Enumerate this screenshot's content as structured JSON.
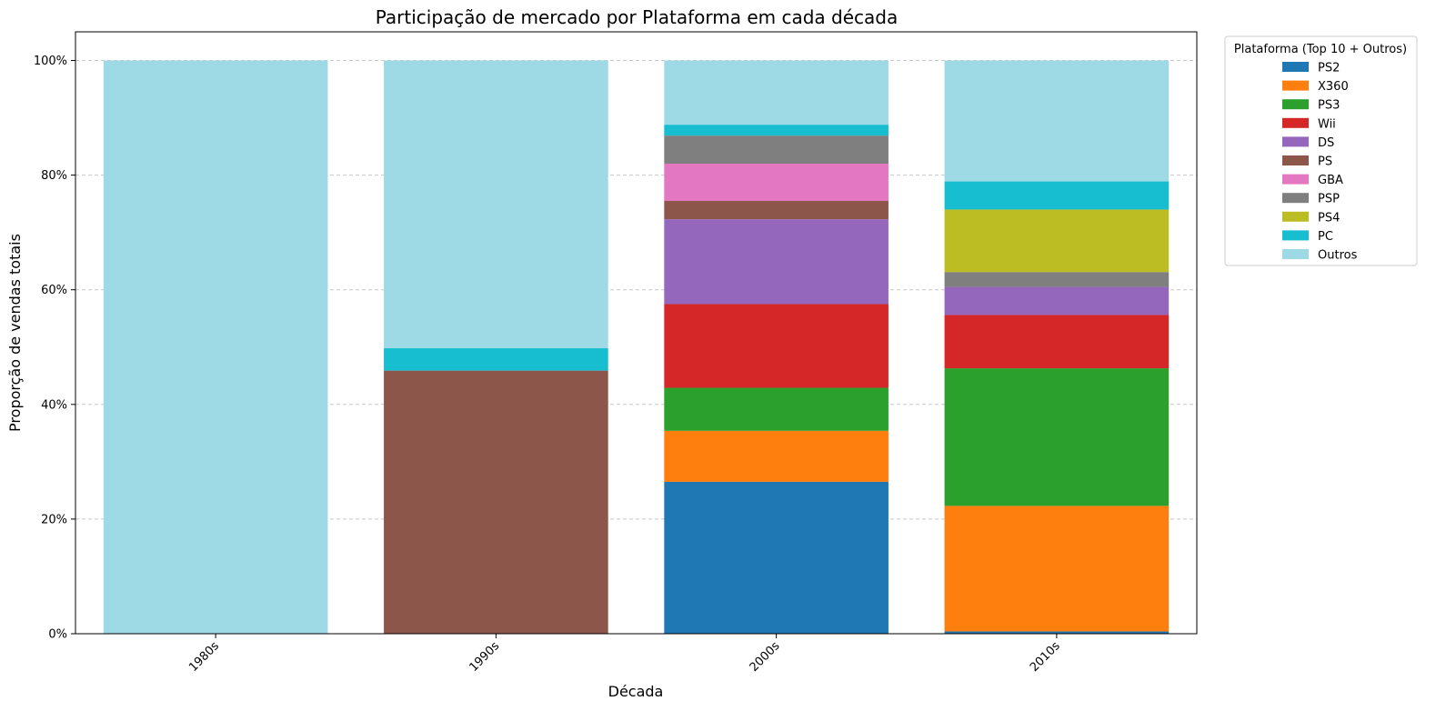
{
  "chart_data": {
    "type": "bar",
    "stacked": true,
    "title": "Participação de mercado por Plataforma em cada década",
    "xlabel": "Década",
    "ylabel": "Proporção de vendas totais",
    "categories": [
      "1980s",
      "1990s",
      "2000s",
      "2010s"
    ],
    "ylim": [
      0,
      105
    ],
    "y_ticks": [
      0,
      20,
      40,
      60,
      80,
      100
    ],
    "y_tick_labels": [
      "0%",
      "20%",
      "40%",
      "60%",
      "80%",
      "100%"
    ],
    "grid": "horizontal dashed",
    "legend": {
      "title": "Plataforma (Top 10 + Outros)",
      "placement": "outside top-right"
    },
    "series": [
      {
        "name": "PS2",
        "color": "#1f77b4",
        "values": [
          0,
          0,
          26.5,
          0.4
        ]
      },
      {
        "name": "X360",
        "color": "#ff7f0e",
        "values": [
          0,
          0,
          8.9,
          21.9
        ]
      },
      {
        "name": "PS3",
        "color": "#2ca02c",
        "values": [
          0,
          0,
          7.5,
          24.0
        ]
      },
      {
        "name": "Wii",
        "color": "#d62728",
        "values": [
          0,
          0,
          14.6,
          9.3
        ]
      },
      {
        "name": "DS",
        "color": "#9467bd",
        "values": [
          0,
          0,
          14.8,
          4.9
        ]
      },
      {
        "name": "PS",
        "color": "#8c564b",
        "values": [
          0,
          45.9,
          3.2,
          0
        ]
      },
      {
        "name": "GBA",
        "color": "#e377c2",
        "values": [
          0,
          0,
          6.5,
          0
        ]
      },
      {
        "name": "PSP",
        "color": "#7f7f7f",
        "values": [
          0,
          0,
          4.9,
          2.6
        ]
      },
      {
        "name": "PS4",
        "color": "#bcbd22",
        "values": [
          0,
          0,
          0,
          10.9
        ]
      },
      {
        "name": "PC",
        "color": "#17becf",
        "values": [
          0,
          3.9,
          1.9,
          4.9
        ]
      },
      {
        "name": "Outros",
        "color": "#9edae5",
        "values": [
          100,
          50.2,
          11.2,
          21.1
        ]
      }
    ]
  }
}
